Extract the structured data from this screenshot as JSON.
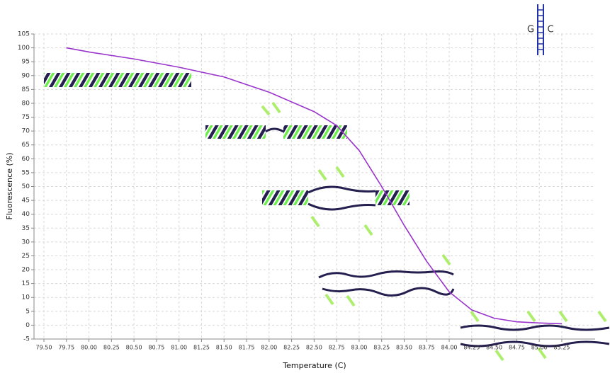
{
  "chart_data": {
    "type": "line",
    "x_label": "Temperature (C)",
    "y_label": "Fluorescence (%)",
    "annotations": [
      "G",
      "C"
    ],
    "x": [
      79.75,
      80.0,
      80.5,
      81.0,
      81.5,
      82.0,
      82.5,
      82.75,
      83.0,
      83.25,
      83.5,
      83.75,
      84.0,
      84.25,
      84.5,
      84.75,
      85.0,
      85.25
    ],
    "series": [
      {
        "color": "#9933cc",
        "values": [
          100,
          98.5,
          96,
          93,
          89.5,
          84,
          77,
          72,
          63,
          50,
          36,
          23,
          12,
          5.5,
          2.5,
          1.2,
          0.8,
          0.5
        ]
      }
    ],
    "xlim": [
      79.39,
      85.62
    ],
    "ylim": [
      -5,
      105
    ],
    "xticks": [
      {
        "value": 79.5,
        "label": "79.50"
      },
      79.75,
      {
        "value": 80.0,
        "label": "80.00"
      },
      80.25,
      {
        "value": 80.5,
        "label": "80.50"
      },
      80.75,
      {
        "value": 81.0,
        "label": "81.00"
      },
      81.25,
      {
        "value": 81.5,
        "label": "81.50"
      },
      81.75,
      {
        "value": 82.0,
        "label": "82.00"
      },
      82.25,
      {
        "value": 82.5,
        "label": "82.50"
      },
      82.75,
      {
        "value": 83.0,
        "label": "83.00"
      },
      83.25,
      {
        "value": 83.5,
        "label": "83.50"
      },
      83.75,
      {
        "value": 84.0,
        "label": "84.00"
      },
      84.25,
      {
        "value": 84.5,
        "label": "84.50"
      },
      84.75,
      {
        "value": 85.0,
        "label": "85.00"
      },
      85.25
    ],
    "yticks": [
      -5,
      0,
      5,
      10,
      15,
      20,
      25,
      30,
      35,
      40,
      45,
      50,
      55,
      60,
      65,
      70,
      75,
      80,
      85,
      90,
      95,
      100,
      105
    ],
    "grid": true
  }
}
